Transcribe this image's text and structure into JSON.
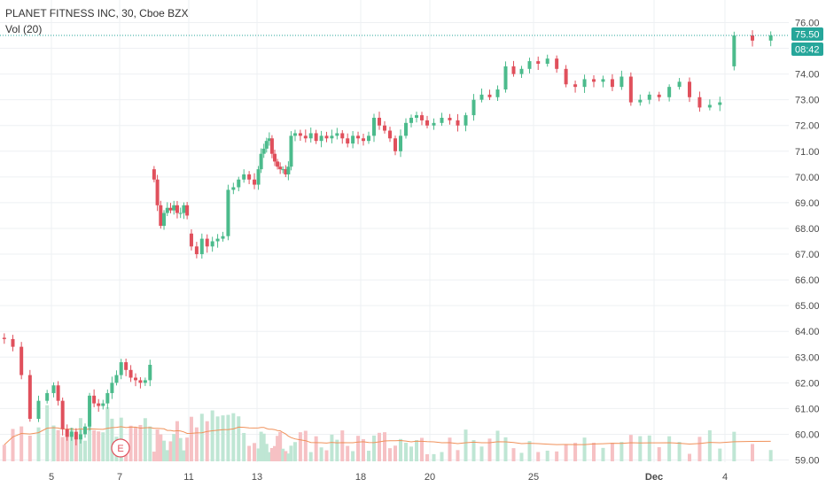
{
  "header": {
    "title": "PLANET FITNESS INC, 30, Cboe BZX",
    "indicator": "Vol (20)"
  },
  "price_badge": {
    "value": "75.50",
    "countdown": "08:42"
  },
  "earnings_marker": {
    "label": "E",
    "date_index": 7
  },
  "colors": {
    "up": "#4cbb8c",
    "down": "#e0505c",
    "volume_up": "#bfe6d4",
    "volume_down": "#f6c1c4",
    "volume_ma": "#f0915a",
    "last_price_line": "#26a69a",
    "badge": "#26a69a",
    "grid": "#eef0f3"
  },
  "chart_data": {
    "type": "candlestick",
    "timeframe": "30",
    "y_axis": {
      "side": "right",
      "ticks": [
        59,
        60,
        61,
        62,
        63,
        64,
        65,
        66,
        67,
        68,
        69,
        70,
        71,
        72,
        73,
        74,
        75,
        76
      ],
      "tick_labels": [
        "59.00",
        "60.00",
        "61.00",
        "62.00",
        "63.00",
        "64.00",
        "65.00",
        "66.00",
        "67.00",
        "68.00",
        "69.00",
        "70.00",
        "71.00",
        "72.00",
        "73.00",
        "74.00",
        "75.00",
        "76.00"
      ],
      "range": [
        58.7,
        76.3
      ]
    },
    "x_axis": {
      "tick_labels": [
        "5",
        "7",
        "11",
        "13",
        "18",
        "20",
        "25",
        "Dec",
        "4"
      ],
      "tick_days": [
        1,
        2,
        4,
        5,
        7,
        8,
        10,
        12,
        13
      ]
    },
    "volume_scale_max": 4500,
    "days": [
      {
        "label": "4",
        "o": 63.75,
        "bars": 4,
        "c": [
          63.7,
          63.4,
          62.3,
          60.6,
          61.3,
          61.6
        ]
      },
      {
        "label": "5",
        "o": 61.6,
        "bars": 12,
        "c": [
          61.9,
          61.3,
          60.2,
          59.9,
          60.1,
          59.8,
          60.0,
          60.3,
          61.5,
          61.2,
          61.1,
          61.2,
          61.6,
          62.0,
          62.3
        ]
      },
      {
        "label": "7",
        "o": 62.3,
        "bars": 13,
        "c": [
          62.8,
          62.5,
          62.2,
          62.1,
          62.0,
          62.1,
          62.7
        ]
      },
      {
        "label": "8",
        "o": 70.3,
        "bars": 13,
        "c": [
          69.9,
          68.9,
          68.1,
          68.6,
          68.8,
          68.7,
          68.9,
          68.6,
          68.6,
          68.9,
          68.5
        ]
      },
      {
        "label": "11",
        "o": 67.8,
        "bars": 13,
        "c": [
          67.3,
          67.0,
          67.6,
          67.3,
          67.5,
          67.6,
          67.7,
          69.5,
          69.6,
          69.9,
          70.1,
          69.9,
          69.7
        ]
      },
      {
        "label": "12",
        "o": 69.7,
        "bars": 13,
        "c": [
          70.3,
          70.9,
          71.1,
          71.4,
          71.5,
          70.9,
          70.6,
          70.4,
          70.3,
          70.3,
          70.1,
          70.4,
          71.6
        ]
      },
      {
        "label": "13",
        "o": 71.6,
        "bars": 13,
        "c": [
          71.7,
          71.6,
          71.5,
          71.7,
          71.4,
          71.6,
          71.5,
          71.6,
          71.7,
          71.5,
          71.3,
          71.6,
          71.5
        ]
      },
      {
        "label": "18",
        "o": 71.5,
        "bars": 13,
        "c": [
          71.4,
          71.6,
          72.3,
          72.0,
          71.8,
          71.5,
          71.0,
          71.6,
          72.1,
          72.3,
          72.4,
          72.2,
          72.0
        ]
      },
      {
        "label": "20",
        "o": 72.0,
        "bars": 13,
        "c": [
          72.1,
          72.3,
          72.2,
          72.0,
          72.4,
          73.0,
          73.2,
          73.1,
          73.4,
          74.3,
          74.0,
          74.2,
          74.5
        ]
      },
      {
        "label": "25",
        "o": 74.5,
        "bars": 13,
        "c": [
          74.4,
          74.6,
          74.2,
          73.6,
          73.5,
          73.8,
          73.7,
          73.8,
          73.5,
          73.9,
          72.9,
          73.0,
          73.2
        ]
      },
      {
        "label": "Dec",
        "o": 73.2,
        "bars": 13,
        "c": [
          73.1,
          73.5,
          73.7,
          73.1,
          72.7,
          72.8,
          72.9
        ]
      },
      {
        "label": "4",
        "o": 74.3,
        "bars": 6,
        "c": [
          75.5,
          75.3,
          75.5
        ]
      }
    ]
  }
}
